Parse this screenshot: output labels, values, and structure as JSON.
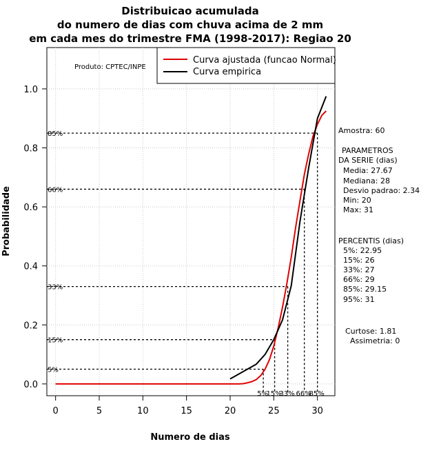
{
  "chart_data": {
    "type": "line",
    "title": [
      "Distribuicao acumulada",
      "do numero de dias com chuva acima de 2 mm",
      "em cada mes do trimestre FMA (1998-2017): Regiao 20"
    ],
    "xlabel": "Numero de dias",
    "ylabel": "Probabilidade",
    "xlim": [
      -1,
      32
    ],
    "ylim": [
      -0.04,
      1.14
    ],
    "xticks": [
      0,
      5,
      10,
      15,
      20,
      25,
      30
    ],
    "yticks": [
      "0.0",
      "0.2",
      "0.4",
      "0.6",
      "0.8",
      "1.0"
    ],
    "grid": true,
    "legend": {
      "position": "top-right",
      "entries": [
        {
          "label": "Curva ajustada (funcao Normal)",
          "color": "#e00000"
        },
        {
          "label": "Curva empirica",
          "color": "#000000"
        }
      ]
    },
    "series": [
      {
        "name": "Curva ajustada (funcao Normal)",
        "color": "#e00000",
        "x": [
          0,
          5,
          10,
          15,
          20,
          21,
          21.5,
          22,
          22.5,
          23,
          23.5,
          24,
          24.5,
          25,
          25.5,
          26,
          26.5,
          27,
          27.5,
          28,
          28.5,
          29,
          29.5,
          30,
          30.5,
          31
        ],
        "y": [
          0,
          0,
          0,
          0,
          0,
          0,
          0.001,
          0.004,
          0.008,
          0.015,
          0.028,
          0.05,
          0.082,
          0.128,
          0.19,
          0.26,
          0.34,
          0.43,
          0.53,
          0.62,
          0.71,
          0.78,
          0.84,
          0.88,
          0.91,
          0.925
        ]
      },
      {
        "name": "Curva empirica",
        "color": "#000000",
        "x": [
          20,
          23,
          24,
          25,
          26,
          27,
          28,
          29,
          30,
          31
        ],
        "y": [
          0.017,
          0.067,
          0.1,
          0.15,
          0.217,
          0.333,
          0.55,
          0.733,
          0.9,
          0.975
        ]
      }
    ],
    "percentile_lines": [
      {
        "label": "5%",
        "prob": 0.05,
        "x": 23.8,
        "ylabel": "5%"
      },
      {
        "label": "15%",
        "prob": 0.15,
        "x": 25.1,
        "ylabel": "15%"
      },
      {
        "label": "33%",
        "prob": 0.33,
        "x": 26.6,
        "ylabel": "33%"
      },
      {
        "label": "66%",
        "prob": 0.66,
        "x": 28.5,
        "ylabel": "66%"
      },
      {
        "label": "85%",
        "prob": 0.85,
        "x": 30.0,
        "ylabel": "85%"
      }
    ]
  },
  "produto": "Produto: CPTEC/INPE",
  "side_panel": {
    "amostra": "Amostra: 60",
    "parametros_title1": "PARAMETROS",
    "parametros_title2": "DA SERIE (dias)",
    "media": "Media: 27.67",
    "mediana": "Mediana: 28",
    "desvio": "Desvio padrao: 2.34",
    "min": "Min: 20",
    "max": "Max: 31",
    "percentis_title": "PERCENTIS (dias)",
    "p5": "5%: 22.95",
    "p15": "15%: 26",
    "p33": "33%: 27",
    "p66": "66%: 29",
    "p85": "85%: 29.15",
    "p95": "95%: 31",
    "curtose": "Curtose: 1.81",
    "assimetria": "Assimetria: 0"
  }
}
